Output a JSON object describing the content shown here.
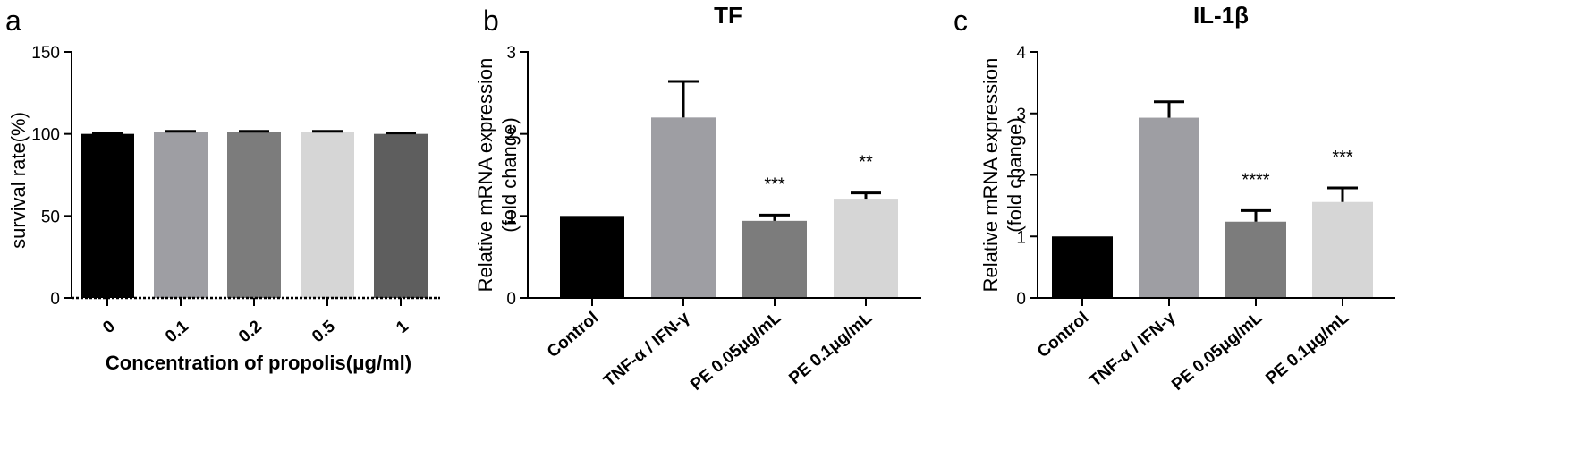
{
  "chart_data": [
    {
      "panel": "a",
      "type": "bar",
      "title": "",
      "xlabel": "Concentration of propolis(μg/ml)",
      "ylabel": "survival rate(%)",
      "ylim": [
        0,
        150
      ],
      "yticks": [
        0,
        50,
        100,
        150
      ],
      "categories": [
        "0",
        "0.1",
        "0.2",
        "0.5",
        "1"
      ],
      "values": [
        100,
        101,
        101,
        101,
        100
      ],
      "errors": [
        0.6,
        0.6,
        0.6,
        0.6,
        0.6
      ],
      "significance": [
        "",
        "",
        "",
        "",
        ""
      ],
      "colors": [
        "#000000",
        "#9e9ea3",
        "#7c7c7c",
        "#d6d6d6",
        "#5e5e5e"
      ],
      "grid": false
    },
    {
      "panel": "b",
      "type": "bar",
      "title": "TF",
      "xlabel": "",
      "ylabel": [
        "Relative mRNA expression",
        "(fold change)"
      ],
      "ylim": [
        0,
        3
      ],
      "yticks": [
        0,
        1,
        2,
        3
      ],
      "categories": [
        "Control",
        "TNF-α / IFN-γ",
        "PE 0.05μg/mL",
        "PE 0.1μg/mL"
      ],
      "values": [
        1.0,
        2.2,
        0.94,
        1.21
      ],
      "errors": [
        0,
        0.44,
        0.07,
        0.07
      ],
      "significance": [
        "",
        "",
        "***",
        "**"
      ],
      "colors": [
        "#000000",
        "#9e9ea3",
        "#7c7c7c",
        "#d6d6d6"
      ],
      "grid": false
    },
    {
      "panel": "c",
      "type": "bar",
      "title": "IL-1β",
      "xlabel": "",
      "ylabel": [
        "Relative mRNA expression",
        "(fold change)"
      ],
      "ylim": [
        0,
        4
      ],
      "yticks": [
        0,
        1,
        2,
        3,
        4
      ],
      "categories": [
        "Control",
        "TNF-α / IFN-γ",
        "PE 0.05μg/mL",
        "PE 0.1μg/mL"
      ],
      "values": [
        1.0,
        2.93,
        1.24,
        1.56
      ],
      "errors": [
        0,
        0.26,
        0.18,
        0.23
      ],
      "significance": [
        "",
        "",
        "****",
        "***"
      ],
      "colors": [
        "#000000",
        "#9e9ea3",
        "#7c7c7c",
        "#d6d6d6"
      ],
      "grid": false
    }
  ]
}
